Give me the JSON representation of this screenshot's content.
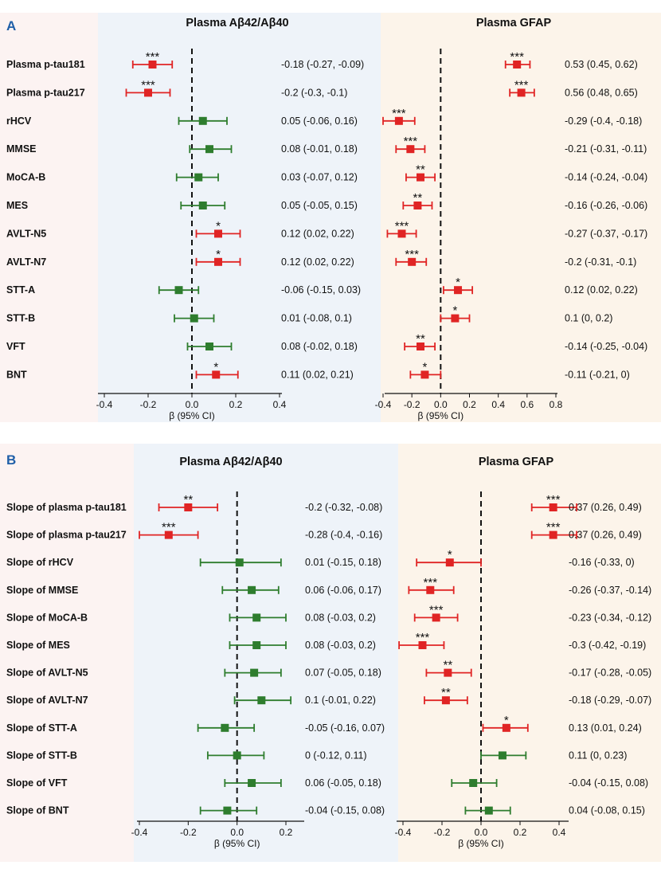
{
  "colors": {
    "significant": "#e02424",
    "nonsignificant": "#2e7d2e",
    "panel_pink": "#fcf3f2",
    "panel_blue": "#eef3f9",
    "panel_beige": "#fcf4ea",
    "panel_label": "#1f5fa8"
  },
  "chart_data": [
    {
      "type": "forest",
      "panel_label": "A",
      "xlabel": "β (95% CI)",
      "rows": [
        "Plasma p-tau181",
        "Plasma p-tau217",
        "rHCV",
        "MMSE",
        "MoCA-B",
        "MES",
        "AVLT-N5",
        "AVLT-N7",
        "STT-A",
        "STT-B",
        "VFT",
        "BNT"
      ],
      "subplots": [
        {
          "title": "Plasma Aβ42/Aβ40",
          "xlim": [
            -0.45,
            0.45
          ],
          "ticks": [
            -0.4,
            -0.2,
            0.0,
            0.2,
            0.4
          ],
          "tick_labels": [
            "-0.4",
            "-0.2",
            "0.0",
            "0.2",
            "0.4"
          ],
          "points": [
            {
              "est": -0.18,
              "lo": -0.27,
              "hi": -0.09,
              "sig": "***",
              "label": "-0.18 (-0.27, -0.09)"
            },
            {
              "est": -0.2,
              "lo": -0.3,
              "hi": -0.1,
              "sig": "***",
              "label": "-0.2 (-0.3, -0.1)"
            },
            {
              "est": 0.05,
              "lo": -0.06,
              "hi": 0.16,
              "sig": "",
              "label": "0.05 (-0.06, 0.16)"
            },
            {
              "est": 0.08,
              "lo": -0.01,
              "hi": 0.18,
              "sig": "",
              "label": "0.08 (-0.01, 0.18)"
            },
            {
              "est": 0.03,
              "lo": -0.07,
              "hi": 0.12,
              "sig": "",
              "label": "0.03 (-0.07, 0.12)"
            },
            {
              "est": 0.05,
              "lo": -0.05,
              "hi": 0.15,
              "sig": "",
              "label": "0.05 (-0.05, 0.15)"
            },
            {
              "est": 0.12,
              "lo": 0.02,
              "hi": 0.22,
              "sig": "*",
              "label": "0.12 (0.02, 0.22)"
            },
            {
              "est": 0.12,
              "lo": 0.02,
              "hi": 0.22,
              "sig": "*",
              "label": "0.12 (0.02, 0.22)"
            },
            {
              "est": -0.06,
              "lo": -0.15,
              "hi": 0.03,
              "sig": "",
              "label": "-0.06 (-0.15, 0.03)"
            },
            {
              "est": 0.01,
              "lo": -0.08,
              "hi": 0.1,
              "sig": "",
              "label": "0.01 (-0.08, 0.1)"
            },
            {
              "est": 0.08,
              "lo": -0.02,
              "hi": 0.18,
              "sig": "",
              "label": "0.08 (-0.02, 0.18)"
            },
            {
              "est": 0.11,
              "lo": 0.02,
              "hi": 0.21,
              "sig": "*",
              "label": "0.11 (0.02, 0.21)"
            }
          ]
        },
        {
          "title": "Plasma GFAP",
          "xlim": [
            -0.45,
            0.85
          ],
          "ticks": [
            -0.4,
            -0.2,
            0.0,
            0.2,
            0.4,
            0.6,
            0.8
          ],
          "tick_labels": [
            "-0.4",
            "-0.2",
            "0.0",
            "0.2",
            "0.4",
            "0.6",
            "0.8"
          ],
          "points": [
            {
              "est": 0.53,
              "lo": 0.45,
              "hi": 0.62,
              "sig": "***",
              "label": "0.53 (0.45, 0.62)"
            },
            {
              "est": 0.56,
              "lo": 0.48,
              "hi": 0.65,
              "sig": "***",
              "label": "0.56 (0.48, 0.65)"
            },
            {
              "est": -0.29,
              "lo": -0.4,
              "hi": -0.18,
              "sig": "***",
              "label": "-0.29 (-0.4, -0.18)"
            },
            {
              "est": -0.21,
              "lo": -0.31,
              "hi": -0.11,
              "sig": "***",
              "label": "-0.21 (-0.31, -0.11)"
            },
            {
              "est": -0.14,
              "lo": -0.24,
              "hi": -0.04,
              "sig": "**",
              "label": "-0.14 (-0.24, -0.04)"
            },
            {
              "est": -0.16,
              "lo": -0.26,
              "hi": -0.06,
              "sig": "**",
              "label": "-0.16 (-0.26, -0.06)"
            },
            {
              "est": -0.27,
              "lo": -0.37,
              "hi": -0.17,
              "sig": "***",
              "label": "-0.27 (-0.37, -0.17)"
            },
            {
              "est": -0.2,
              "lo": -0.31,
              "hi": -0.1,
              "sig": "***",
              "label": "-0.2 (-0.31, -0.1)"
            },
            {
              "est": 0.12,
              "lo": 0.02,
              "hi": 0.22,
              "sig": "*",
              "label": "0.12 (0.02, 0.22)"
            },
            {
              "est": 0.1,
              "lo": 0.0,
              "hi": 0.2,
              "sig": "*",
              "label": "0.1 (0, 0.2)"
            },
            {
              "est": -0.14,
              "lo": -0.25,
              "hi": -0.04,
              "sig": "**",
              "label": "-0.14 (-0.25, -0.04)"
            },
            {
              "est": -0.11,
              "lo": -0.21,
              "hi": 0.0,
              "sig": "*",
              "label": "-0.11 (-0.21, 0)"
            }
          ]
        }
      ]
    },
    {
      "type": "forest",
      "panel_label": "B",
      "xlabel": "β (95% CI)",
      "rows": [
        "Slope of plasma p-tau181",
        "Slope of plasma p-tau217",
        "Slope of rHCV",
        "Slope of MMSE",
        "Slope of MoCA-B",
        "Slope of MES",
        "Slope of AVLT-N5",
        "Slope of AVLT-N7",
        "Slope of STT-A",
        "Slope of STT-B",
        "Slope of VFT",
        "Slope of BNT"
      ],
      "subplots": [
        {
          "title": "Plasma Aβ42/Aβ40",
          "xlim": [
            -0.42,
            0.32
          ],
          "ticks": [
            -0.4,
            -0.2,
            0.0,
            0.2
          ],
          "tick_labels": [
            "-0.4",
            "-0.2",
            "0.0",
            "0.2"
          ],
          "points": [
            {
              "est": -0.2,
              "lo": -0.32,
              "hi": -0.08,
              "sig": "**",
              "label": "-0.2 (-0.32, -0.08)"
            },
            {
              "est": -0.28,
              "lo": -0.4,
              "hi": -0.16,
              "sig": "***",
              "label": "-0.28 (-0.4, -0.16)"
            },
            {
              "est": 0.01,
              "lo": -0.15,
              "hi": 0.18,
              "sig": "",
              "label": "0.01 (-0.15, 0.18)"
            },
            {
              "est": 0.06,
              "lo": -0.06,
              "hi": 0.17,
              "sig": "",
              "label": "0.06 (-0.06, 0.17)"
            },
            {
              "est": 0.08,
              "lo": -0.03,
              "hi": 0.2,
              "sig": "",
              "label": "0.08 (-0.03, 0.2)"
            },
            {
              "est": 0.08,
              "lo": -0.03,
              "hi": 0.2,
              "sig": "",
              "label": "0.08 (-0.03, 0.2)"
            },
            {
              "est": 0.07,
              "lo": -0.05,
              "hi": 0.18,
              "sig": "",
              "label": "0.07 (-0.05, 0.18)"
            },
            {
              "est": 0.1,
              "lo": -0.01,
              "hi": 0.22,
              "sig": "",
              "label": "0.1 (-0.01, 0.22)"
            },
            {
              "est": -0.05,
              "lo": -0.16,
              "hi": 0.07,
              "sig": "",
              "label": "-0.05 (-0.16, 0.07)"
            },
            {
              "est": 0.0,
              "lo": -0.12,
              "hi": 0.11,
              "sig": "",
              "label": "0 (-0.12, 0.11)"
            },
            {
              "est": 0.06,
              "lo": -0.05,
              "hi": 0.18,
              "sig": "",
              "label": "0.06 (-0.05, 0.18)"
            },
            {
              "est": -0.04,
              "lo": -0.15,
              "hi": 0.08,
              "sig": "",
              "label": "-0.04 (-0.15, 0.08)"
            }
          ]
        },
        {
          "title": "Plasma GFAP",
          "xlim": [
            -0.45,
            0.55
          ],
          "ticks": [
            -0.4,
            -0.2,
            0.0,
            0.2,
            0.4
          ],
          "tick_labels": [
            "-0.4",
            "-0.2",
            "0.0",
            "0.2",
            "0.4"
          ],
          "points": [
            {
              "est": 0.37,
              "lo": 0.26,
              "hi": 0.49,
              "sig": "***",
              "label": "0.37 (0.26, 0.49)"
            },
            {
              "est": 0.37,
              "lo": 0.26,
              "hi": 0.49,
              "sig": "***",
              "label": "0.37 (0.26, 0.49)"
            },
            {
              "est": -0.16,
              "lo": -0.33,
              "hi": 0.0,
              "sig": "*",
              "label": "-0.16 (-0.33, 0)"
            },
            {
              "est": -0.26,
              "lo": -0.37,
              "hi": -0.14,
              "sig": "***",
              "label": "-0.26 (-0.37, -0.14)"
            },
            {
              "est": -0.23,
              "lo": -0.34,
              "hi": -0.12,
              "sig": "***",
              "label": "-0.23 (-0.34, -0.12)"
            },
            {
              "est": -0.3,
              "lo": -0.42,
              "hi": -0.19,
              "sig": "***",
              "label": "-0.3 (-0.42, -0.19)"
            },
            {
              "est": -0.17,
              "lo": -0.28,
              "hi": -0.05,
              "sig": "**",
              "label": "-0.17 (-0.28, -0.05)"
            },
            {
              "est": -0.18,
              "lo": -0.29,
              "hi": -0.07,
              "sig": "**",
              "label": "-0.18 (-0.29, -0.07)"
            },
            {
              "est": 0.13,
              "lo": 0.01,
              "hi": 0.24,
              "sig": "*",
              "label": "0.13 (0.01, 0.24)"
            },
            {
              "est": 0.11,
              "lo": 0.0,
              "hi": 0.23,
              "sig": "",
              "label": "0.11 (0, 0.23)"
            },
            {
              "est": -0.04,
              "lo": -0.15,
              "hi": 0.08,
              "sig": "",
              "label": "-0.04 (-0.15, 0.08)"
            },
            {
              "est": 0.04,
              "lo": -0.08,
              "hi": 0.15,
              "sig": "",
              "label": "0.04 (-0.08, 0.15)"
            }
          ]
        }
      ]
    }
  ]
}
